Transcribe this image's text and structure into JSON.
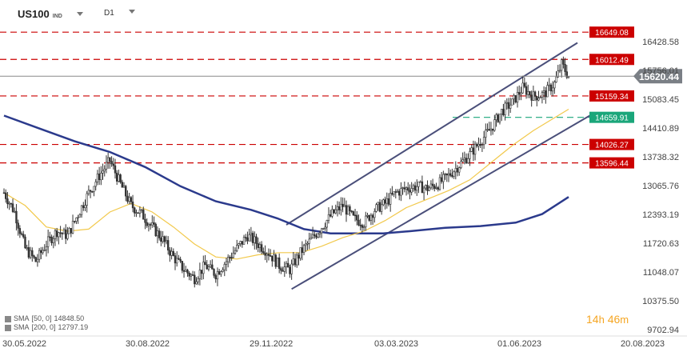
{
  "toolbar": {
    "symbol": "US100",
    "symbol_suffix": "IND",
    "timeframe": "D1"
  },
  "timer": {
    "hours": "14",
    "h_unit": "h",
    "minutes": "46",
    "m_unit": "m"
  },
  "legend": [
    {
      "label": "SMA",
      "params": "[50, 0]",
      "value": "14848.50"
    },
    {
      "label": "SMA",
      "params": "[200, 0]",
      "value": "12797.19"
    }
  ],
  "colors": {
    "price_label_bg": "#7a7f85",
    "resistance_red": "#cc0000",
    "support_green": "#1aa67a",
    "sma50": "#f2c94c",
    "sma200": "#2b3a8c",
    "channel": "#4a4f7a",
    "candle": "#333333"
  },
  "chart_data": {
    "type": "candlestick",
    "instrument": "US100",
    "timeframe": "D1",
    "yticks": [
      "16428.58",
      "15756.01",
      "15083.45",
      "14410.89",
      "13738.32",
      "13065.76",
      "12393.19",
      "11720.63",
      "11048.07",
      "10375.50",
      "9702.94"
    ],
    "xticks": [
      "30.05.2022",
      "30.08.2022",
      "29.11.2022",
      "03.03.2023",
      "01.06.2023",
      "20.08.2023"
    ],
    "ylim": [
      9702.94,
      16900
    ],
    "current_price": 15620.44,
    "levels": [
      {
        "value": 16649.08,
        "label": "16649.08",
        "kind": "resistance"
      },
      {
        "value": 16012.49,
        "label": "16012.49",
        "kind": "resistance"
      },
      {
        "value": 15159.34,
        "label": "15159.34",
        "kind": "resistance"
      },
      {
        "value": 14659.91,
        "label": "14659.91",
        "kind": "support"
      },
      {
        "value": 14026.27,
        "label": "14026.27",
        "kind": "resistance"
      },
      {
        "value": 13596.44,
        "label": "13596.44",
        "kind": "resistance"
      }
    ],
    "close_series": [
      {
        "x": 0,
        "close": 12900
      },
      {
        "x": 6,
        "close": 12450
      },
      {
        "x": 12,
        "close": 11600
      },
      {
        "x": 18,
        "close": 11300
      },
      {
        "x": 24,
        "close": 11700
      },
      {
        "x": 30,
        "close": 12000
      },
      {
        "x": 36,
        "close": 11900
      },
      {
        "x": 42,
        "close": 12400
      },
      {
        "x": 48,
        "close": 12900
      },
      {
        "x": 54,
        "close": 13300
      },
      {
        "x": 60,
        "close": 13650
      },
      {
        "x": 66,
        "close": 13100
      },
      {
        "x": 72,
        "close": 12600
      },
      {
        "x": 78,
        "close": 12400
      },
      {
        "x": 84,
        "close": 12100
      },
      {
        "x": 90,
        "close": 11800
      },
      {
        "x": 96,
        "close": 11400
      },
      {
        "x": 102,
        "close": 11100
      },
      {
        "x": 108,
        "close": 10900
      },
      {
        "x": 114,
        "close": 11200
      },
      {
        "x": 120,
        "close": 11000
      },
      {
        "x": 126,
        "close": 11300
      },
      {
        "x": 132,
        "close": 11600
      },
      {
        "x": 138,
        "close": 11900
      },
      {
        "x": 144,
        "close": 11700
      },
      {
        "x": 150,
        "close": 11500
      },
      {
        "x": 156,
        "close": 11200
      },
      {
        "x": 162,
        "close": 11100
      },
      {
        "x": 168,
        "close": 11500
      },
      {
        "x": 174,
        "close": 11800
      },
      {
        "x": 180,
        "close": 12100
      },
      {
        "x": 186,
        "close": 12400
      },
      {
        "x": 192,
        "close": 12600
      },
      {
        "x": 198,
        "close": 12300
      },
      {
        "x": 204,
        "close": 12200
      },
      {
        "x": 210,
        "close": 12500
      },
      {
        "x": 216,
        "close": 12650
      },
      {
        "x": 222,
        "close": 12900
      },
      {
        "x": 228,
        "close": 13000
      },
      {
        "x": 234,
        "close": 13050
      },
      {
        "x": 240,
        "close": 13000
      },
      {
        "x": 246,
        "close": 13100
      },
      {
        "x": 252,
        "close": 13300
      },
      {
        "x": 258,
        "close": 13550
      },
      {
        "x": 264,
        "close": 13800
      },
      {
        "x": 270,
        "close": 14100
      },
      {
        "x": 276,
        "close": 14400
      },
      {
        "x": 282,
        "close": 14800
      },
      {
        "x": 288,
        "close": 15000
      },
      {
        "x": 294,
        "close": 15350
      },
      {
        "x": 300,
        "close": 15150
      },
      {
        "x": 306,
        "close": 15200
      },
      {
        "x": 312,
        "close": 15450
      },
      {
        "x": 316,
        "close": 15900
      },
      {
        "x": 320,
        "close": 15620
      }
    ],
    "sma50": [
      {
        "x": 0,
        "y": 12900
      },
      {
        "x": 12,
        "y": 12600
      },
      {
        "x": 24,
        "y": 12100
      },
      {
        "x": 36,
        "y": 12000
      },
      {
        "x": 48,
        "y": 12050
      },
      {
        "x": 60,
        "y": 12450
      },
      {
        "x": 72,
        "y": 12650
      },
      {
        "x": 84,
        "y": 12450
      },
      {
        "x": 96,
        "y": 12100
      },
      {
        "x": 108,
        "y": 11700
      },
      {
        "x": 120,
        "y": 11400
      },
      {
        "x": 132,
        "y": 11350
      },
      {
        "x": 144,
        "y": 11450
      },
      {
        "x": 156,
        "y": 11500
      },
      {
        "x": 168,
        "y": 11500
      },
      {
        "x": 180,
        "y": 11650
      },
      {
        "x": 192,
        "y": 11850
      },
      {
        "x": 204,
        "y": 12000
      },
      {
        "x": 216,
        "y": 12250
      },
      {
        "x": 228,
        "y": 12550
      },
      {
        "x": 240,
        "y": 12750
      },
      {
        "x": 252,
        "y": 12950
      },
      {
        "x": 264,
        "y": 13200
      },
      {
        "x": 276,
        "y": 13600
      },
      {
        "x": 288,
        "y": 14000
      },
      {
        "x": 300,
        "y": 14350
      },
      {
        "x": 310,
        "y": 14600
      },
      {
        "x": 320,
        "y": 14850
      }
    ],
    "sma200": [
      {
        "x": 0,
        "y": 14700
      },
      {
        "x": 20,
        "y": 14400
      },
      {
        "x": 40,
        "y": 14100
      },
      {
        "x": 60,
        "y": 13850
      },
      {
        "x": 80,
        "y": 13500
      },
      {
        "x": 100,
        "y": 13050
      },
      {
        "x": 120,
        "y": 12700
      },
      {
        "x": 140,
        "y": 12500
      },
      {
        "x": 155,
        "y": 12300
      },
      {
        "x": 170,
        "y": 12050
      },
      {
        "x": 185,
        "y": 11950
      },
      {
        "x": 200,
        "y": 11950
      },
      {
        "x": 215,
        "y": 11950
      },
      {
        "x": 230,
        "y": 12000
      },
      {
        "x": 250,
        "y": 12080
      },
      {
        "x": 270,
        "y": 12120
      },
      {
        "x": 290,
        "y": 12200
      },
      {
        "x": 305,
        "y": 12400
      },
      {
        "x": 320,
        "y": 12800
      }
    ],
    "channel": [
      {
        "from": {
          "x": 160,
          "y": 12150
        },
        "to": {
          "x": 325,
          "y": 16400
        }
      },
      {
        "from": {
          "x": 163,
          "y": 10650
        },
        "to": {
          "x": 332,
          "y": 14700
        }
      }
    ],
    "grid": false
  }
}
